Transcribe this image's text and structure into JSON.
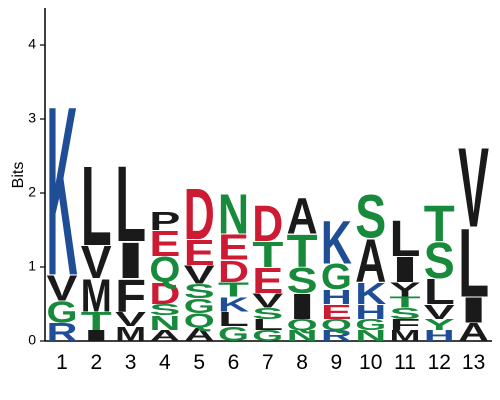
{
  "chart_data": {
    "type": "sequence-logo",
    "title": "",
    "xlabel": "",
    "ylabel": "Bits",
    "ylim": [
      0,
      4.5
    ],
    "y_ticks": [
      "0",
      "1",
      "2",
      "3",
      "4"
    ],
    "positions": [
      "1",
      "2",
      "3",
      "4",
      "5",
      "6",
      "7",
      "8",
      "9",
      "10",
      "11",
      "12",
      "13"
    ],
    "colors": {
      "black": "#1a1a1a",
      "blue": "#1f4e96",
      "green": "#178a3c",
      "red": "#cc1b33"
    },
    "stacks": [
      [
        {
          "letter": "R",
          "value": 0.25,
          "color": "blue"
        },
        {
          "letter": "G",
          "value": 0.3,
          "color": "green"
        },
        {
          "letter": "V",
          "value": 0.35,
          "color": "black"
        },
        {
          "letter": "K",
          "value": 2.35,
          "color": "blue"
        }
      ],
      [
        {
          "letter": "I",
          "value": 0.15,
          "color": "black"
        },
        {
          "letter": "T",
          "value": 0.25,
          "color": "green"
        },
        {
          "letter": "M",
          "value": 0.45,
          "color": "black"
        },
        {
          "letter": "V",
          "value": 0.45,
          "color": "black"
        },
        {
          "letter": "L",
          "value": 1.1,
          "color": "black"
        }
      ],
      [
        {
          "letter": "M",
          "value": 0.2,
          "color": "black"
        },
        {
          "letter": "V",
          "value": 0.2,
          "color": "black"
        },
        {
          "letter": "F",
          "value": 0.45,
          "color": "black"
        },
        {
          "letter": "I",
          "value": 0.5,
          "color": "black"
        },
        {
          "letter": "L",
          "value": 1.05,
          "color": "black"
        }
      ],
      [
        {
          "letter": "A",
          "value": 0.15,
          "color": "black"
        },
        {
          "letter": "N",
          "value": 0.2,
          "color": "green"
        },
        {
          "letter": "S",
          "value": 0.15,
          "color": "green"
        },
        {
          "letter": "D",
          "value": 0.3,
          "color": "red"
        },
        {
          "letter": "Q",
          "value": 0.35,
          "color": "green"
        },
        {
          "letter": "E",
          "value": 0.35,
          "color": "red"
        },
        {
          "letter": "P",
          "value": 0.25,
          "color": "black"
        }
      ],
      [
        {
          "letter": "A",
          "value": 0.18,
          "color": "black"
        },
        {
          "letter": "Q",
          "value": 0.2,
          "color": "green"
        },
        {
          "letter": "G",
          "value": 0.2,
          "color": "green"
        },
        {
          "letter": "S",
          "value": 0.2,
          "color": "green"
        },
        {
          "letter": "V",
          "value": 0.25,
          "color": "black"
        },
        {
          "letter": "E",
          "value": 0.35,
          "color": "red"
        },
        {
          "letter": "D",
          "value": 0.7,
          "color": "red"
        }
      ],
      [
        {
          "letter": "G",
          "value": 0.2,
          "color": "green"
        },
        {
          "letter": "L",
          "value": 0.2,
          "color": "black"
        },
        {
          "letter": "K",
          "value": 0.2,
          "color": "blue"
        },
        {
          "letter": "T",
          "value": 0.2,
          "color": "green"
        },
        {
          "letter": "D",
          "value": 0.3,
          "color": "red"
        },
        {
          "letter": "E",
          "value": 0.35,
          "color": "red"
        },
        {
          "letter": "N",
          "value": 0.55,
          "color": "green"
        }
      ],
      [
        {
          "letter": "G",
          "value": 0.15,
          "color": "green"
        },
        {
          "letter": "L",
          "value": 0.15,
          "color": "black"
        },
        {
          "letter": "S",
          "value": 0.15,
          "color": "green"
        },
        {
          "letter": "V",
          "value": 0.2,
          "color": "black"
        },
        {
          "letter": "E",
          "value": 0.35,
          "color": "red"
        },
        {
          "letter": "T",
          "value": 0.35,
          "color": "green"
        },
        {
          "letter": "D",
          "value": 0.5,
          "color": "red"
        }
      ],
      [
        {
          "letter": "N",
          "value": 0.15,
          "color": "green"
        },
        {
          "letter": "Q",
          "value": 0.15,
          "color": "green"
        },
        {
          "letter": "I",
          "value": 0.35,
          "color": "black"
        },
        {
          "letter": "S",
          "value": 0.35,
          "color": "green"
        },
        {
          "letter": "T",
          "value": 0.45,
          "color": "green"
        },
        {
          "letter": "A",
          "value": 0.5,
          "color": "black"
        }
      ],
      [
        {
          "letter": "R",
          "value": 0.15,
          "color": "blue"
        },
        {
          "letter": "Q",
          "value": 0.15,
          "color": "green"
        },
        {
          "letter": "E",
          "value": 0.2,
          "color": "red"
        },
        {
          "letter": "H",
          "value": 0.2,
          "color": "blue"
        },
        {
          "letter": "G",
          "value": 0.35,
          "color": "green"
        },
        {
          "letter": "K",
          "value": 0.6,
          "color": "blue"
        }
      ],
      [
        {
          "letter": "N",
          "value": 0.15,
          "color": "green"
        },
        {
          "letter": "G",
          "value": 0.15,
          "color": "green"
        },
        {
          "letter": "H",
          "value": 0.2,
          "color": "blue"
        },
        {
          "letter": "K",
          "value": 0.3,
          "color": "blue"
        },
        {
          "letter": "A",
          "value": 0.6,
          "color": "black"
        },
        {
          "letter": "S",
          "value": 0.6,
          "color": "green"
        }
      ],
      [
        {
          "letter": "M",
          "value": 0.15,
          "color": "black"
        },
        {
          "letter": "F",
          "value": 0.15,
          "color": "black"
        },
        {
          "letter": "S",
          "value": 0.15,
          "color": "green"
        },
        {
          "letter": "T",
          "value": 0.15,
          "color": "green"
        },
        {
          "letter": "Y",
          "value": 0.2,
          "color": "black"
        },
        {
          "letter": "I",
          "value": 0.35,
          "color": "black"
        },
        {
          "letter": "L",
          "value": 0.5,
          "color": "black"
        }
      ],
      [
        {
          "letter": "H",
          "value": 0.15,
          "color": "blue"
        },
        {
          "letter": "Y",
          "value": 0.15,
          "color": "green"
        },
        {
          "letter": "V",
          "value": 0.2,
          "color": "black"
        },
        {
          "letter": "L",
          "value": 0.35,
          "color": "black"
        },
        {
          "letter": "S",
          "value": 0.5,
          "color": "green"
        },
        {
          "letter": "T",
          "value": 0.5,
          "color": "green"
        }
      ],
      [
        {
          "letter": "A",
          "value": 0.25,
          "color": "black"
        },
        {
          "letter": "I",
          "value": 0.35,
          "color": "black"
        },
        {
          "letter": "L",
          "value": 0.95,
          "color": "black"
        },
        {
          "letter": "V",
          "value": 1.1,
          "color": "black"
        }
      ]
    ]
  }
}
